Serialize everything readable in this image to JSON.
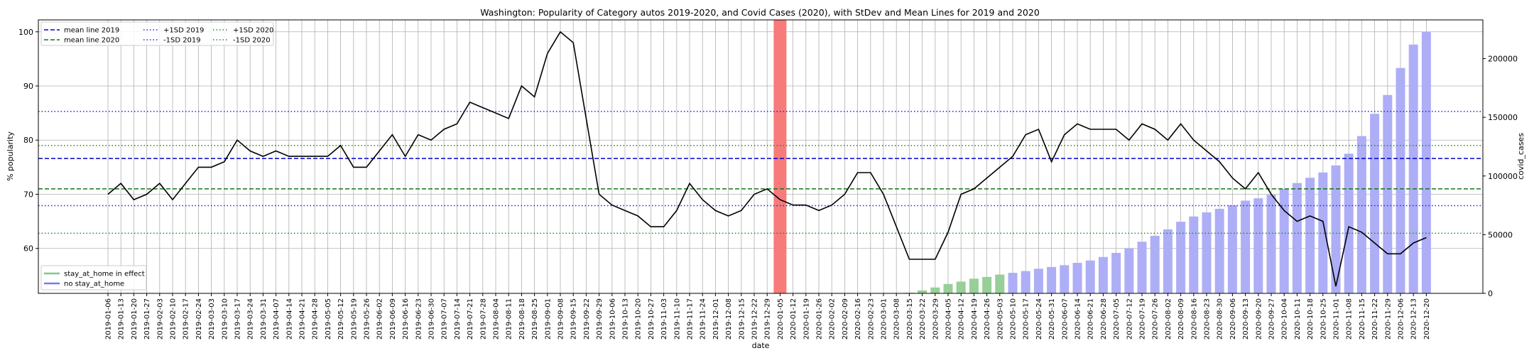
{
  "chart_data": {
    "type": "line",
    "title": "Washington: Popularity of Category autos 2019-2020, and Covid Cases (2020), with StDev and Mean Lines for 2019 and 2020",
    "xlabel": "date",
    "ylabel": "% popularity",
    "y2label": "covid_cases",
    "ylim": [
      51.7,
      102.2
    ],
    "y2lim": [
      0,
      233000
    ],
    "yticks": [
      60,
      70,
      80,
      90,
      100
    ],
    "y2ticks": [
      0,
      50000,
      100000,
      150000,
      200000
    ],
    "y2ticklabels": [
      "0",
      "50000",
      "100000",
      "150000",
      "200000"
    ],
    "grid": true,
    "x": [
      "2019-01-06",
      "2019-01-13",
      "2019-01-20",
      "2019-01-27",
      "2019-02-03",
      "2019-02-10",
      "2019-02-17",
      "2019-02-24",
      "2019-03-03",
      "2019-03-10",
      "2019-03-17",
      "2019-03-24",
      "2019-03-31",
      "2019-04-07",
      "2019-04-14",
      "2019-04-21",
      "2019-04-28",
      "2019-05-05",
      "2019-05-12",
      "2019-05-19",
      "2019-05-26",
      "2019-06-02",
      "2019-06-09",
      "2019-06-16",
      "2019-06-23",
      "2019-06-30",
      "2019-07-07",
      "2019-07-14",
      "2019-07-21",
      "2019-07-28",
      "2019-08-04",
      "2019-08-11",
      "2019-08-18",
      "2019-08-25",
      "2019-09-01",
      "2019-09-08",
      "2019-09-15",
      "2019-09-22",
      "2019-09-29",
      "2019-10-06",
      "2019-10-13",
      "2019-10-20",
      "2019-10-27",
      "2019-11-03",
      "2019-11-10",
      "2019-11-17",
      "2019-11-24",
      "2019-12-01",
      "2019-12-08",
      "2019-12-15",
      "2019-12-22",
      "2019-12-29",
      "2020-01-05",
      "2020-01-12",
      "2020-01-19",
      "2020-01-26",
      "2020-02-02",
      "2020-02-09",
      "2020-02-16",
      "2020-02-23",
      "2020-03-01",
      "2020-03-08",
      "2020-03-15",
      "2020-03-22",
      "2020-03-29",
      "2020-04-05",
      "2020-04-12",
      "2020-04-19",
      "2020-04-26",
      "2020-05-03",
      "2020-05-10",
      "2020-05-17",
      "2020-05-24",
      "2020-05-31",
      "2020-06-07",
      "2020-06-14",
      "2020-06-21",
      "2020-06-28",
      "2020-07-05",
      "2020-07-12",
      "2020-07-19",
      "2020-07-26",
      "2020-08-02",
      "2020-08-09",
      "2020-08-16",
      "2020-08-23",
      "2020-08-30",
      "2020-09-06",
      "2020-09-13",
      "2020-09-20",
      "2020-09-27",
      "2020-10-04",
      "2020-10-11",
      "2020-10-18",
      "2020-10-25",
      "2020-11-01",
      "2020-11-08",
      "2020-11-15",
      "2020-11-22",
      "2020-11-29",
      "2020-12-06",
      "2020-12-13",
      "2020-12-20"
    ],
    "popularity": [
      70,
      72,
      69,
      70,
      72,
      69,
      72,
      75,
      75,
      76,
      80,
      78,
      77,
      78,
      77,
      77,
      77,
      77,
      79,
      75,
      75,
      78,
      81,
      77,
      81,
      80,
      82,
      83,
      87,
      86,
      85,
      84,
      90,
      88,
      96,
      100,
      98,
      84,
      70,
      68,
      67,
      66,
      64,
      64,
      67,
      72,
      69,
      67,
      66,
      67,
      70,
      71,
      69,
      68,
      68,
      67,
      68,
      70,
      74,
      74,
      70,
      64,
      58,
      58,
      58,
      63,
      70,
      71,
      73,
      75,
      77,
      81,
      82,
      76,
      81,
      83,
      82,
      82,
      82,
      80,
      83,
      82,
      80,
      83,
      80,
      78,
      76,
      73,
      71,
      74,
      70,
      67,
      65,
      66,
      65,
      53,
      64,
      63,
      61,
      59,
      59,
      61,
      62
    ],
    "covid_cases": [
      0,
      0,
      0,
      0,
      0,
      0,
      0,
      0,
      0,
      0,
      0,
      0,
      0,
      0,
      0,
      0,
      0,
      0,
      0,
      0,
      0,
      0,
      0,
      0,
      0,
      0,
      0,
      0,
      0,
      0,
      0,
      0,
      0,
      0,
      0,
      0,
      0,
      0,
      0,
      0,
      0,
      0,
      0,
      0,
      0,
      0,
      0,
      0,
      0,
      0,
      0,
      0,
      0,
      0,
      0,
      0,
      0,
      0,
      0,
      0,
      0,
      0,
      500,
      2500,
      5000,
      8000,
      10000,
      12500,
      14000,
      16000,
      17500,
      19000,
      21000,
      22500,
      24000,
      26000,
      28000,
      31000,
      34500,
      38500,
      44000,
      49000,
      54500,
      61000,
      65500,
      69000,
      72000,
      75000,
      79000,
      81000,
      84000,
      89000,
      94000,
      98500,
      103000,
      109000,
      119000,
      134000,
      153000,
      169000,
      192000,
      212000,
      223000
    ],
    "bar_colors": {
      "stay_at_home": "#97cf97",
      "no_stay_at_home": "#aeaef7"
    },
    "stay_at_home_from": "2020-03-22",
    "stay_at_home_to": "2020-05-03",
    "reference_lines": [
      {
        "name": "mean line 2019",
        "value": 76.6,
        "color": "#0000cc",
        "style": "dashed"
      },
      {
        "name": "mean line 2020",
        "value": 71.0,
        "color": "#117711",
        "style": "dashed"
      },
      {
        "name": "+1SD 2019",
        "value": 85.3,
        "color": "#2222dd",
        "style": "dotted"
      },
      {
        "name": "-1SD 2019",
        "value": 67.9,
        "color": "#2222dd",
        "style": "dotted"
      },
      {
        "name": "+1SD 2020",
        "value": 79.0,
        "color": "#228822",
        "style": "dotted"
      },
      {
        "name": "-1SD 2020",
        "value": 62.8,
        "color": "#228822",
        "style": "dotted"
      }
    ],
    "highlight_date": "2020-01-05",
    "highlight_color": "#f77b7b",
    "legend_top": {
      "placement": "top-left",
      "entries": [
        {
          "label": "mean line 2019",
          "color": "#0000cc",
          "style": "dashed"
        },
        {
          "label": "mean line 2020",
          "color": "#117711",
          "style": "dashed"
        },
        {
          "label": "+1SD 2019",
          "color": "#2222dd",
          "style": "dotted"
        },
        {
          "label": "-1SD 2019",
          "color": "#2222dd",
          "style": "dotted"
        },
        {
          "label": "+1SD 2020",
          "color": "#228822",
          "style": "dotted"
        },
        {
          "label": "-1SD 2020",
          "color": "#228822",
          "style": "dotted"
        }
      ]
    },
    "legend_bottom": {
      "placement": "bottom-left",
      "entries": [
        {
          "label": "stay_at_home in effect",
          "color": "#85c585"
        },
        {
          "label": "no stay_at_home",
          "color": "#7a7af0"
        }
      ]
    }
  }
}
